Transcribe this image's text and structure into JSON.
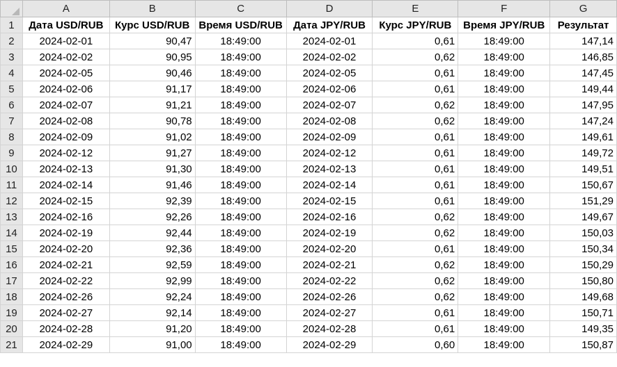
{
  "columns": [
    "A",
    "B",
    "C",
    "D",
    "E",
    "F",
    "G"
  ],
  "headers": [
    "Дата USD/RUB",
    "Курс USD/RUB",
    "Время USD/RUB",
    "Дата JPY/RUB",
    "Курс JPY/RUB",
    "Время JPY/RUB",
    "Результат"
  ],
  "rows": [
    [
      "2",
      "2024-02-01",
      "90,47",
      "18:49:00",
      "2024-02-01",
      "0,61",
      "18:49:00",
      "147,14"
    ],
    [
      "3",
      "2024-02-02",
      "90,95",
      "18:49:00",
      "2024-02-02",
      "0,62",
      "18:49:00",
      "146,85"
    ],
    [
      "4",
      "2024-02-05",
      "90,46",
      "18:49:00",
      "2024-02-05",
      "0,61",
      "18:49:00",
      "147,45"
    ],
    [
      "5",
      "2024-02-06",
      "91,17",
      "18:49:00",
      "2024-02-06",
      "0,61",
      "18:49:00",
      "149,44"
    ],
    [
      "6",
      "2024-02-07",
      "91,21",
      "18:49:00",
      "2024-02-07",
      "0,62",
      "18:49:00",
      "147,95"
    ],
    [
      "7",
      "2024-02-08",
      "90,78",
      "18:49:00",
      "2024-02-08",
      "0,62",
      "18:49:00",
      "147,24"
    ],
    [
      "8",
      "2024-02-09",
      "91,02",
      "18:49:00",
      "2024-02-09",
      "0,61",
      "18:49:00",
      "149,61"
    ],
    [
      "9",
      "2024-02-12",
      "91,27",
      "18:49:00",
      "2024-02-12",
      "0,61",
      "18:49:00",
      "149,72"
    ],
    [
      "10",
      "2024-02-13",
      "91,30",
      "18:49:00",
      "2024-02-13",
      "0,61",
      "18:49:00",
      "149,51"
    ],
    [
      "11",
      "2024-02-14",
      "91,46",
      "18:49:00",
      "2024-02-14",
      "0,61",
      "18:49:00",
      "150,67"
    ],
    [
      "12",
      "2024-02-15",
      "92,39",
      "18:49:00",
      "2024-02-15",
      "0,61",
      "18:49:00",
      "151,29"
    ],
    [
      "13",
      "2024-02-16",
      "92,26",
      "18:49:00",
      "2024-02-16",
      "0,62",
      "18:49:00",
      "149,67"
    ],
    [
      "14",
      "2024-02-19",
      "92,44",
      "18:49:00",
      "2024-02-19",
      "0,62",
      "18:49:00",
      "150,03"
    ],
    [
      "15",
      "2024-02-20",
      "92,36",
      "18:49:00",
      "2024-02-20",
      "0,61",
      "18:49:00",
      "150,34"
    ],
    [
      "16",
      "2024-02-21",
      "92,59",
      "18:49:00",
      "2024-02-21",
      "0,62",
      "18:49:00",
      "150,29"
    ],
    [
      "17",
      "2024-02-22",
      "92,99",
      "18:49:00",
      "2024-02-22",
      "0,62",
      "18:49:00",
      "150,80"
    ],
    [
      "18",
      "2024-02-26",
      "92,24",
      "18:49:00",
      "2024-02-26",
      "0,62",
      "18:49:00",
      "149,68"
    ],
    [
      "19",
      "2024-02-27",
      "92,14",
      "18:49:00",
      "2024-02-27",
      "0,61",
      "18:49:00",
      "150,71"
    ],
    [
      "20",
      "2024-02-28",
      "91,20",
      "18:49:00",
      "2024-02-28",
      "0,61",
      "18:49:00",
      "149,35"
    ],
    [
      "21",
      "2024-02-29",
      "91,00",
      "18:49:00",
      "2024-02-29",
      "0,60",
      "18:49:00",
      "150,87"
    ]
  ]
}
